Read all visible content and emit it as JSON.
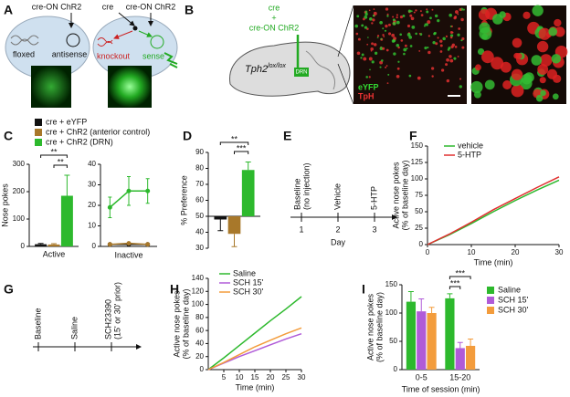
{
  "panels": {
    "A": {
      "label": "A",
      "left_cell": {
        "injection": "cre-ON ChR2",
        "gene": "floxed",
        "rna": "antisense"
      },
      "right_cell": {
        "injection_1": "cre",
        "injection_2": "cre-ON ChR2",
        "gene": "knockout",
        "rna": "sense"
      }
    },
    "B": {
      "label": "B",
      "injection": [
        "cre",
        "+",
        "cre-ON ChR2"
      ],
      "mouse": "Tph2",
      "mouse_sup": "lox/lox",
      "region": "DRN",
      "stain_1": "eYFP",
      "stain_2": "TpH"
    },
    "E": {
      "label": "E",
      "events": [
        "Baseline",
        "(no injection)",
        "Vehicle",
        "5-HTP"
      ],
      "days": [
        1,
        2,
        3
      ],
      "xlabel": "Day"
    },
    "G": {
      "label": "G",
      "events": [
        "Baseline",
        "Saline",
        "SCH23390",
        "(15' or 30' prior)"
      ]
    }
  },
  "chart_data": [
    {
      "type": "bar",
      "panel_label": "C",
      "ylabel": [
        "Nose pokes"
      ],
      "categories": [
        "Active"
      ],
      "ylim": [
        0,
        300
      ],
      "yticks": [
        0,
        100,
        200,
        300
      ],
      "legend": true,
      "series": [
        {
          "name": "cre + eYFP",
          "color": "#111111",
          "values": [
            8
          ],
          "errors": [
            3
          ]
        },
        {
          "name": "cre + ChR2 (anterior control)",
          "color": "#a8782a",
          "values": [
            7
          ],
          "errors": [
            3
          ]
        },
        {
          "name": "cre + ChR2 (DRN)",
          "color": "#2db92d",
          "values": [
            185
          ],
          "errors": [
            75
          ]
        }
      ],
      "significance": [
        "**",
        "**"
      ]
    },
    {
      "type": "line",
      "xlabel": "Inactive",
      "x": [
        1,
        2,
        3
      ],
      "xlim": [
        0.5,
        3.5
      ],
      "ylim": [
        0,
        40
      ],
      "yticks": [
        0,
        10,
        20,
        30,
        40
      ],
      "markers": true,
      "series": [
        {
          "color": "#111111",
          "values": [
            1,
            1,
            1
          ],
          "errors": [
            0.5,
            0.5,
            0.5
          ]
        },
        {
          "color": "#a8782a",
          "values": [
            1,
            1.5,
            1
          ],
          "errors": [
            0.5,
            0.5,
            0.5
          ]
        },
        {
          "color": "#2db92d",
          "values": [
            19,
            27,
            27
          ],
          "errors": [
            5,
            7,
            6
          ]
        }
      ]
    },
    {
      "type": "bar",
      "panel_label": "D",
      "ylabel": [
        "% Preference"
      ],
      "categories": [
        null
      ],
      "ylim": [
        30,
        90
      ],
      "yticks": [
        30,
        40,
        50,
        60,
        70,
        80,
        90
      ],
      "baseline": 50,
      "series": [
        {
          "color": "#111111",
          "values": [
            48
          ],
          "errors": [
            7
          ]
        },
        {
          "color": "#a8782a",
          "values": [
            39
          ],
          "errors": [
            8
          ]
        },
        {
          "color": "#2db92d",
          "values": [
            79
          ],
          "errors": [
            5
          ]
        }
      ],
      "significance": [
        "**",
        "***"
      ]
    },
    {
      "type": "line",
      "panel_label": "F",
      "ylabel": [
        "Active nose pokes",
        "(% of baseline day)"
      ],
      "xlabel": "Time (min)",
      "x": [
        0,
        5,
        10,
        15,
        20,
        25,
        30
      ],
      "xlim": [
        0,
        30
      ],
      "xticks": [
        0,
        10,
        20,
        30
      ],
      "ylim": [
        0,
        150
      ],
      "yticks": [
        0,
        25,
        50,
        75,
        100,
        125,
        150
      ],
      "legend": true,
      "series": [
        {
          "name": "vehicle",
          "color": "#2db92d",
          "values": [
            0,
            15,
            32,
            50,
            67,
            83,
            98
          ]
        },
        {
          "name": "5-HTP",
          "color": "#e03030",
          "values": [
            0,
            16,
            34,
            53,
            70,
            87,
            103
          ]
        }
      ]
    },
    {
      "type": "line",
      "panel_label": "H",
      "ylabel": [
        "Active nose pokes",
        "(% of baseline day)"
      ],
      "xlabel": "Time (min)",
      "x": [
        0,
        5,
        10,
        15,
        20,
        25,
        30
      ],
      "xlim": [
        0,
        30
      ],
      "xticks": [
        5,
        10,
        15,
        20,
        25,
        30
      ],
      "ylim": [
        0,
        140
      ],
      "yticks": [
        0,
        20,
        40,
        60,
        80,
        100,
        120,
        140
      ],
      "legend": true,
      "series": [
        {
          "name": "Saline",
          "color": "#2db92d",
          "values": [
            0,
            18,
            37,
            56,
            75,
            93,
            112
          ]
        },
        {
          "name": "SCH 15'",
          "color": "#b05bd8",
          "values": [
            0,
            10,
            20,
            29,
            38,
            47,
            55
          ]
        },
        {
          "name": "SCH 30'",
          "color": "#f39c3c",
          "values": [
            0,
            11,
            23,
            35,
            45,
            55,
            64
          ]
        }
      ]
    },
    {
      "type": "bar",
      "panel_label": "I",
      "ylabel": [
        "Active nose pokes",
        "(% of baseline day)"
      ],
      "xlabel": "Time of session (min)",
      "categories": [
        "0-5",
        "15-20"
      ],
      "ylim": [
        0,
        150
      ],
      "yticks": [
        0,
        50,
        100,
        150
      ],
      "legend": true,
      "series": [
        {
          "name": "Saline",
          "color": "#2db92d",
          "values": [
            120,
            126
          ],
          "errors": [
            18,
            8
          ]
        },
        {
          "name": "SCH 15'",
          "color": "#b05bd8",
          "values": [
            103,
            38
          ],
          "errors": [
            22,
            10
          ]
        },
        {
          "name": "SCH 30'",
          "color": "#f39c3c",
          "values": [
            100,
            42
          ],
          "errors": [
            10,
            12
          ]
        }
      ],
      "significance": [
        "***",
        "***"
      ]
    }
  ]
}
